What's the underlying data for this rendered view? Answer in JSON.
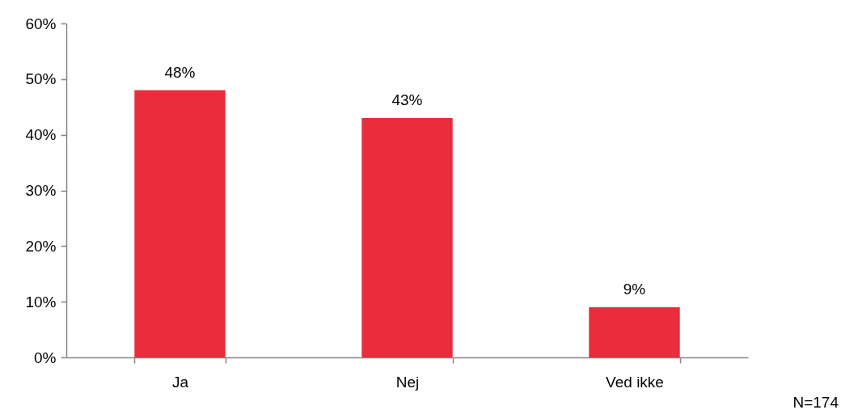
{
  "chart_data": {
    "type": "bar",
    "categories": [
      "Ja",
      "Nej",
      "Ved ikke"
    ],
    "values": [
      48,
      43,
      9
    ],
    "value_labels": [
      "48%",
      "43%",
      "9%"
    ],
    "color": "#eb2c3c",
    "ylim": [
      0,
      60
    ],
    "yticks": [
      {
        "value": 0,
        "label": "0%"
      },
      {
        "value": 10,
        "label": "10%"
      },
      {
        "value": 20,
        "label": "20%"
      },
      {
        "value": 30,
        "label": "30%"
      },
      {
        "value": 40,
        "label": "40%"
      },
      {
        "value": 50,
        "label": "50%"
      },
      {
        "value": 60,
        "label": "60%"
      }
    ],
    "grid": false,
    "annotations": [
      "N=174"
    ]
  }
}
